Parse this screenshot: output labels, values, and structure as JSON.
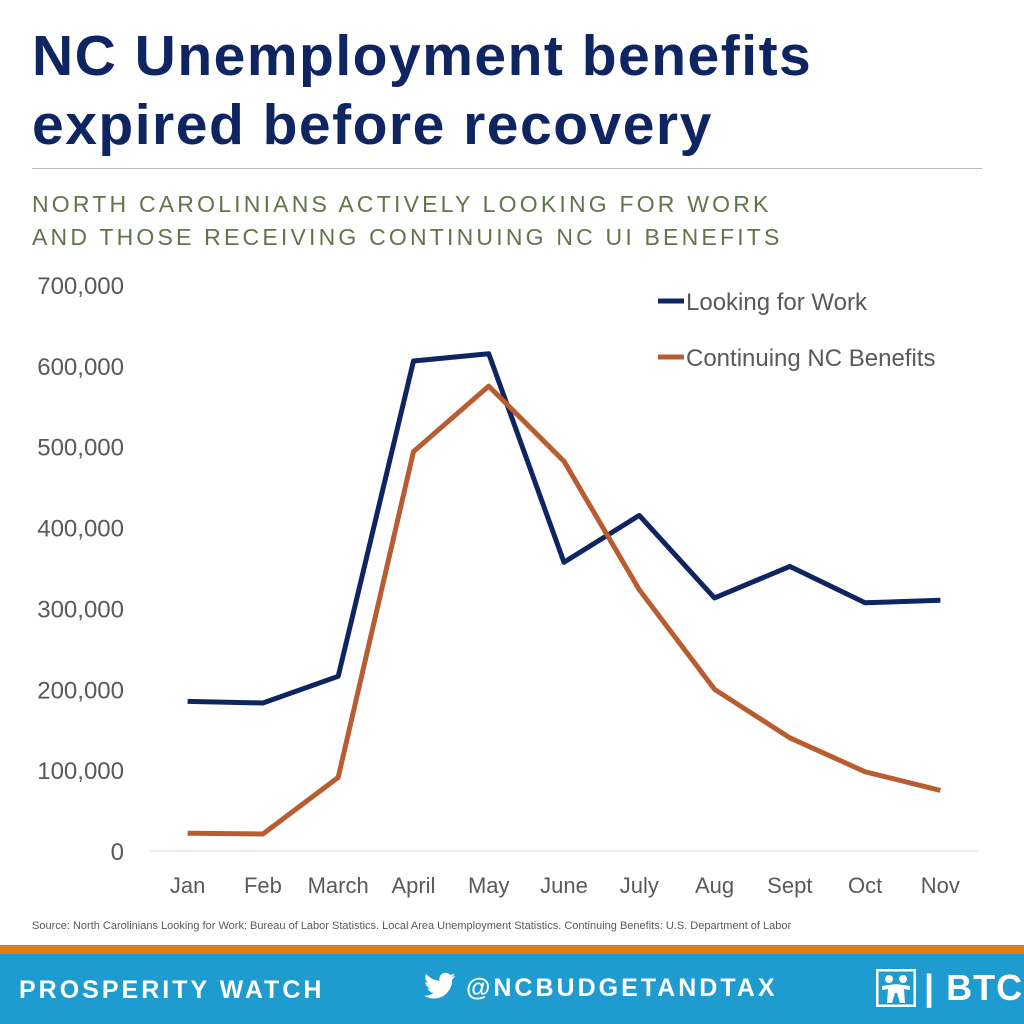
{
  "title": "NC Unemployment benefits expired before recovery",
  "subtitle_line1": "NORTH CAROLINIANS ACTIVELY LOOKING FOR WORK",
  "subtitle_line2": "AND THOSE RECEIVING CONTINUING NC UI BENEFITS",
  "source": "Source: North Carolinians Looking for Work: Bureau of Labor Statistics. Local Area Unemployment Statistics. Continuing Benefits: U.S. Department of Labor",
  "footer": {
    "left_label": "PROSPERITY WATCH",
    "handle": "@NCBUDGETANDTAX",
    "twitter_icon": "twitter-bird-icon",
    "logo_text": "| BTC"
  },
  "colors": {
    "title": "#0e2562",
    "subtitle": "#627449",
    "looking": "#0e2562",
    "continuing": "#b85d31",
    "footer_bg": "#1f9ccf",
    "footer_stripe": "#e07b1a"
  },
  "chart_data": {
    "type": "line",
    "title": "",
    "xlabel": "",
    "ylabel": "",
    "categories": [
      "Jan",
      "Feb",
      "March",
      "April",
      "May",
      "June",
      "July",
      "Aug",
      "Sept",
      "Oct",
      "Nov"
    ],
    "ylim": [
      0,
      700000
    ],
    "yticks": [
      0,
      100000,
      200000,
      300000,
      400000,
      500000,
      600000,
      700000
    ],
    "ytick_labels": [
      "0",
      "100,000",
      "200,000",
      "300,000",
      "400,000",
      "500,000",
      "600,000",
      "700,000"
    ],
    "grid": "none",
    "legend_position": "top-right",
    "series": [
      {
        "name": "Looking for Work",
        "color": "#0e2562",
        "values": [
          185000,
          183000,
          216000,
          606000,
          615000,
          357000,
          415000,
          313000,
          352000,
          307000,
          310000
        ]
      },
      {
        "name": "Continuing NC Benefits",
        "color": "#b85d31",
        "values": [
          22000,
          21000,
          91000,
          494000,
          575000,
          482000,
          323000,
          200000,
          140000,
          98000,
          75000
        ]
      }
    ]
  }
}
